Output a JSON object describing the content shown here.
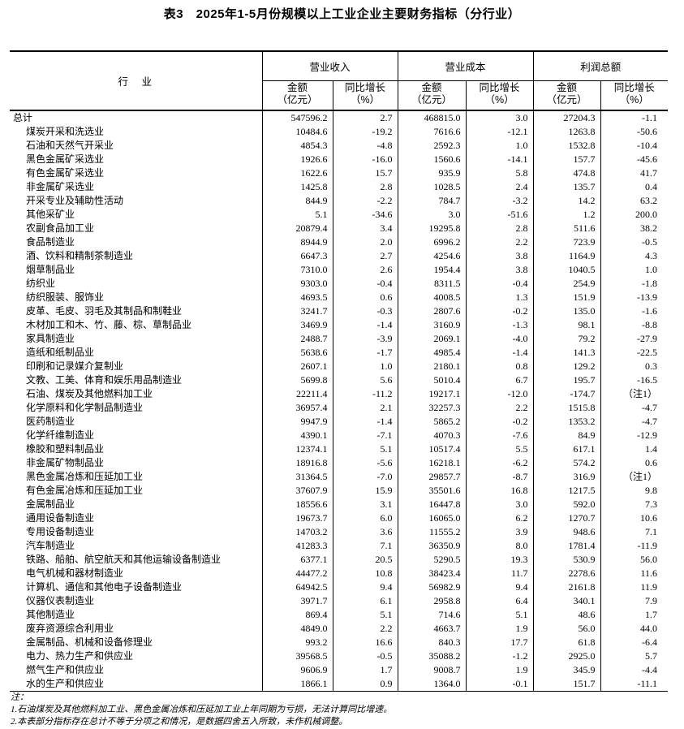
{
  "title": "表3　2025年1-5月份规模以上工业企业主要财务指标（分行业）",
  "table": {
    "industry_header": "行　业",
    "groups": [
      {
        "label": "营业收入"
      },
      {
        "label": "营业成本"
      },
      {
        "label": "利润总额"
      }
    ],
    "sub_headers": {
      "amount_line1": "金额",
      "amount_line2": "（亿元）",
      "growth_line1": "同比增长",
      "growth_line2": "（%）"
    },
    "rows": [
      {
        "name": "总计",
        "indent": 0,
        "values": [
          "547596.2",
          "2.7",
          "468815.0",
          "3.0",
          "27204.3",
          "-1.1"
        ]
      },
      {
        "name": "煤炭开采和洗选业",
        "indent": 1,
        "values": [
          "10484.6",
          "-19.2",
          "7616.6",
          "-12.1",
          "1263.8",
          "-50.6"
        ]
      },
      {
        "name": "石油和天然气开采业",
        "indent": 1,
        "values": [
          "4854.3",
          "-4.8",
          "2592.3",
          "1.0",
          "1532.8",
          "-10.4"
        ]
      },
      {
        "name": "黑色金属矿采选业",
        "indent": 1,
        "values": [
          "1926.6",
          "-16.0",
          "1560.6",
          "-14.1",
          "157.7",
          "-45.6"
        ]
      },
      {
        "name": "有色金属矿采选业",
        "indent": 1,
        "values": [
          "1622.6",
          "15.7",
          "935.9",
          "5.8",
          "474.8",
          "41.7"
        ]
      },
      {
        "name": "非金属矿采选业",
        "indent": 1,
        "values": [
          "1425.8",
          "2.8",
          "1028.5",
          "2.4",
          "135.7",
          "0.4"
        ]
      },
      {
        "name": "开采专业及辅助性活动",
        "indent": 1,
        "values": [
          "844.9",
          "-2.2",
          "784.7",
          "-3.2",
          "14.2",
          "63.2"
        ]
      },
      {
        "name": "其他采矿业",
        "indent": 1,
        "values": [
          "5.1",
          "-34.6",
          "3.0",
          "-51.6",
          "1.2",
          "200.0"
        ]
      },
      {
        "name": "农副食品加工业",
        "indent": 1,
        "values": [
          "20879.4",
          "3.4",
          "19295.8",
          "2.8",
          "511.6",
          "38.2"
        ]
      },
      {
        "name": "食品制造业",
        "indent": 1,
        "values": [
          "8944.9",
          "2.0",
          "6996.2",
          "2.2",
          "723.9",
          "-0.5"
        ]
      },
      {
        "name": "酒、饮料和精制茶制造业",
        "indent": 1,
        "values": [
          "6647.3",
          "2.7",
          "4254.6",
          "3.8",
          "1164.9",
          "4.3"
        ]
      },
      {
        "name": "烟草制品业",
        "indent": 1,
        "values": [
          "7310.0",
          "2.6",
          "1954.4",
          "3.8",
          "1040.5",
          "1.0"
        ]
      },
      {
        "name": "纺织业",
        "indent": 1,
        "values": [
          "9303.0",
          "-0.4",
          "8311.5",
          "-0.4",
          "254.9",
          "-1.8"
        ]
      },
      {
        "name": "纺织服装、服饰业",
        "indent": 1,
        "values": [
          "4693.5",
          "0.6",
          "4008.5",
          "1.3",
          "151.9",
          "-13.9"
        ]
      },
      {
        "name": "皮革、毛皮、羽毛及其制品和制鞋业",
        "indent": 1,
        "values": [
          "3241.7",
          "-0.3",
          "2807.6",
          "-0.2",
          "135.0",
          "-1.6"
        ]
      },
      {
        "name": "木材加工和木、竹、藤、棕、草制品业",
        "indent": 1,
        "values": [
          "3469.9",
          "-1.4",
          "3160.9",
          "-1.3",
          "98.1",
          "-8.8"
        ]
      },
      {
        "name": "家具制造业",
        "indent": 1,
        "values": [
          "2488.7",
          "-3.9",
          "2069.1",
          "-4.0",
          "79.2",
          "-27.9"
        ]
      },
      {
        "name": "造纸和纸制品业",
        "indent": 1,
        "values": [
          "5638.6",
          "-1.7",
          "4985.4",
          "-1.4",
          "141.3",
          "-22.5"
        ]
      },
      {
        "name": "印刷和记录媒介复制业",
        "indent": 1,
        "values": [
          "2607.1",
          "1.0",
          "2180.1",
          "0.8",
          "129.2",
          "0.3"
        ]
      },
      {
        "name": "文教、工美、体育和娱乐用品制造业",
        "indent": 1,
        "values": [
          "5699.8",
          "5.6",
          "5010.4",
          "6.7",
          "195.7",
          "-16.5"
        ]
      },
      {
        "name": "石油、煤炭及其他燃料加工业",
        "indent": 1,
        "values": [
          "22211.4",
          "-11.2",
          "19217.1",
          "-12.0",
          "-174.7",
          "（注1）"
        ]
      },
      {
        "name": "化学原料和化学制品制造业",
        "indent": 1,
        "values": [
          "36957.4",
          "2.1",
          "32257.3",
          "2.2",
          "1515.8",
          "-4.7"
        ]
      },
      {
        "name": "医药制造业",
        "indent": 1,
        "values": [
          "9947.9",
          "-1.4",
          "5865.2",
          "-0.2",
          "1353.2",
          "-4.7"
        ]
      },
      {
        "name": "化学纤维制造业",
        "indent": 1,
        "values": [
          "4390.1",
          "-7.1",
          "4070.3",
          "-7.6",
          "84.9",
          "-12.9"
        ]
      },
      {
        "name": "橡胶和塑料制品业",
        "indent": 1,
        "values": [
          "12374.1",
          "5.1",
          "10517.4",
          "5.5",
          "617.1",
          "1.4"
        ]
      },
      {
        "name": "非金属矿物制品业",
        "indent": 1,
        "values": [
          "18916.8",
          "-5.6",
          "16218.1",
          "-6.2",
          "574.2",
          "0.6"
        ]
      },
      {
        "name": "黑色金属冶炼和压延加工业",
        "indent": 1,
        "values": [
          "31364.5",
          "-7.0",
          "29857.7",
          "-8.7",
          "316.9",
          "（注1）"
        ]
      },
      {
        "name": "有色金属冶炼和压延加工业",
        "indent": 1,
        "values": [
          "37607.9",
          "15.9",
          "35501.6",
          "16.8",
          "1217.5",
          "9.8"
        ]
      },
      {
        "name": "金属制品业",
        "indent": 1,
        "values": [
          "18556.6",
          "3.1",
          "16447.8",
          "3.0",
          "592.0",
          "7.3"
        ]
      },
      {
        "name": "通用设备制造业",
        "indent": 1,
        "values": [
          "19673.7",
          "6.0",
          "16065.0",
          "6.2",
          "1270.7",
          "10.6"
        ]
      },
      {
        "name": "专用设备制造业",
        "indent": 1,
        "values": [
          "14703.2",
          "3.6",
          "11555.2",
          "3.9",
          "948.6",
          "7.1"
        ]
      },
      {
        "name": "汽车制造业",
        "indent": 1,
        "values": [
          "41283.3",
          "7.1",
          "36350.9",
          "8.0",
          "1781.4",
          "-11.9"
        ]
      },
      {
        "name": "铁路、船舶、航空航天和其他运输设备制造业",
        "indent": 1,
        "values": [
          "6377.1",
          "20.5",
          "5290.5",
          "19.3",
          "530.9",
          "56.0"
        ]
      },
      {
        "name": "电气机械和器材制造业",
        "indent": 1,
        "values": [
          "44477.2",
          "10.8",
          "38423.4",
          "11.7",
          "2278.6",
          "11.6"
        ]
      },
      {
        "name": "计算机、通信和其他电子设备制造业",
        "indent": 1,
        "values": [
          "64942.5",
          "9.4",
          "56982.9",
          "9.4",
          "2161.8",
          "11.9"
        ]
      },
      {
        "name": "仪器仪表制造业",
        "indent": 1,
        "values": [
          "3971.7",
          "6.1",
          "2958.8",
          "6.4",
          "340.1",
          "7.9"
        ]
      },
      {
        "name": "其他制造业",
        "indent": 1,
        "values": [
          "869.4",
          "5.1",
          "714.6",
          "5.1",
          "48.6",
          "1.7"
        ]
      },
      {
        "name": "废弃资源综合利用业",
        "indent": 1,
        "values": [
          "4849.0",
          "2.2",
          "4663.7",
          "1.9",
          "56.0",
          "44.0"
        ]
      },
      {
        "name": "金属制品、机械和设备修理业",
        "indent": 1,
        "values": [
          "993.2",
          "16.6",
          "840.3",
          "17.7",
          "61.8",
          "-6.4"
        ]
      },
      {
        "name": "电力、热力生产和供应业",
        "indent": 1,
        "values": [
          "39568.5",
          "-0.5",
          "35088.2",
          "-1.2",
          "2925.0",
          "5.7"
        ]
      },
      {
        "name": "燃气生产和供应业",
        "indent": 1,
        "values": [
          "9606.9",
          "1.7",
          "9008.7",
          "1.9",
          "345.9",
          "-4.4"
        ]
      },
      {
        "name": "水的生产和供应业",
        "indent": 1,
        "values": [
          "1866.1",
          "0.9",
          "1364.0",
          "-0.1",
          "151.7",
          "-11.1"
        ]
      }
    ]
  },
  "footnotes": {
    "label": "注：",
    "items": [
      "1.石油煤炭及其他燃料加工业、黑色金属冶炼和压延加工业上年同期为亏损，无法计算同比增速。",
      "2.本表部分指标存在总计不等于分项之和情况，是数据四舍五入所致，未作机械调整。"
    ]
  }
}
